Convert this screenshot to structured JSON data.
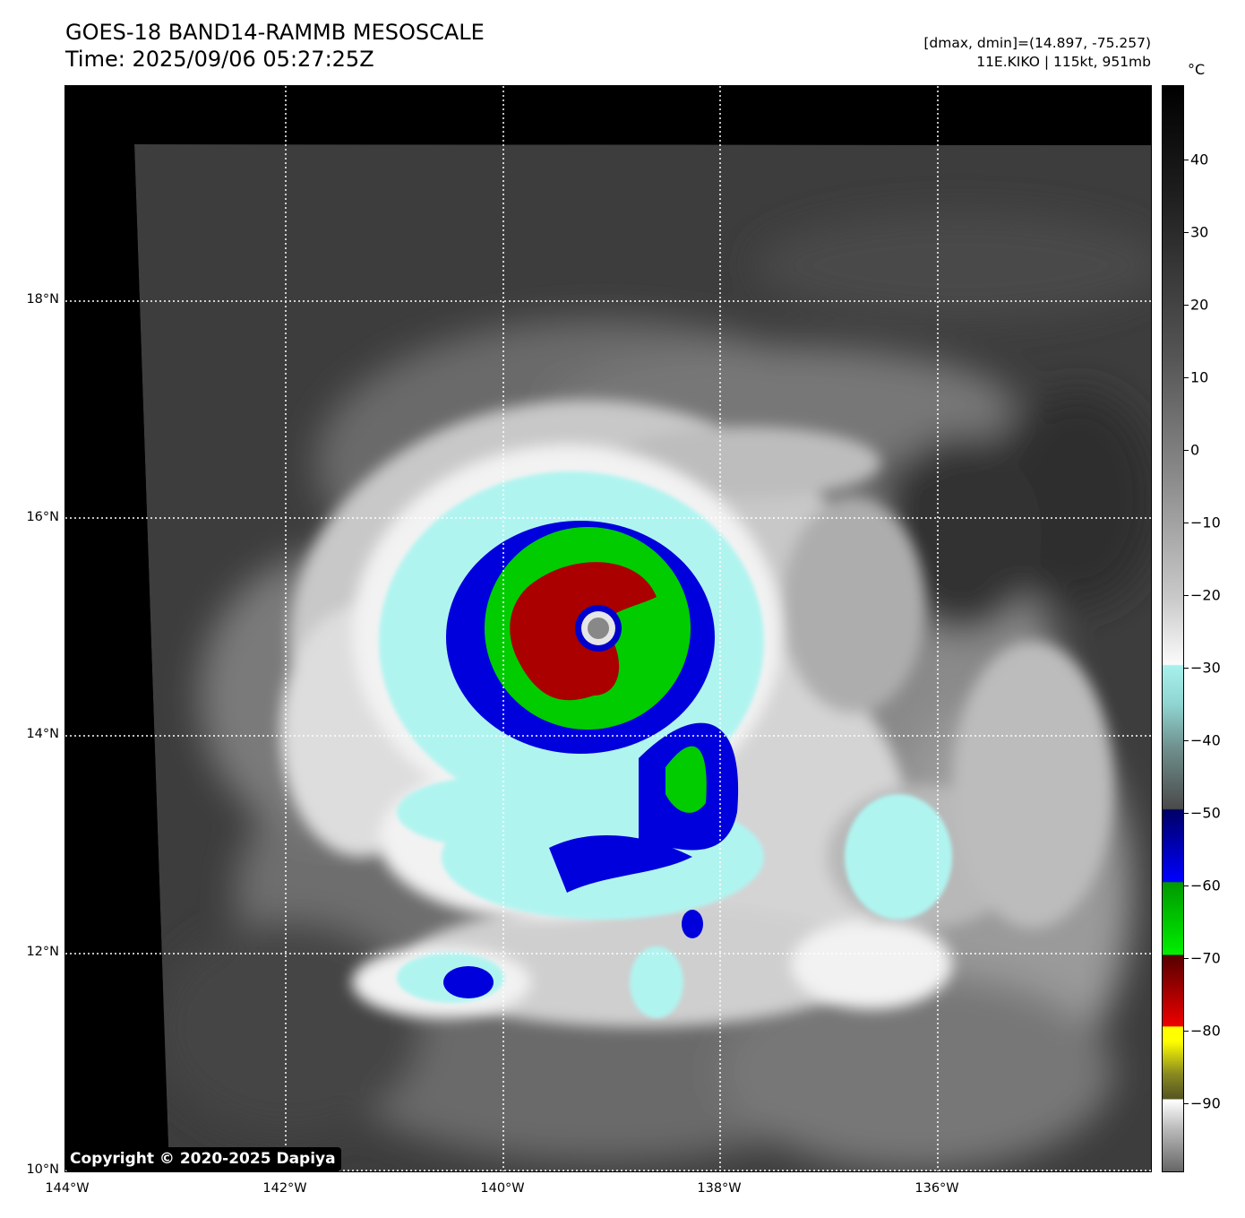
{
  "header": {
    "title_line1": "GOES-18 BAND14-RAMMB MESOSCALE",
    "title_line2": "Time: 2025/09/06 05:27:25Z",
    "info_line1": "[dmax, dmin]=(14.897, -75.257)",
    "info_line2": "11E.KIKO | 115kt, 951mb"
  },
  "map": {
    "lat_labels": [
      "18°N",
      "16°N",
      "14°N",
      "12°N",
      "10°N"
    ],
    "lon_labels": [
      "144°W",
      "142°W",
      "140°W",
      "138°W",
      "136°W"
    ],
    "copyright": "Copyright © 2020-2025 Dapiya",
    "colors": {
      "cold_green": "#00cc00",
      "cold_blue": "#0000dd",
      "cold_red": "#aa0000",
      "cyan": "#b0f4f0"
    }
  },
  "colorbar": {
    "unit": "°C",
    "ticks": [
      "40",
      "30",
      "20",
      "10",
      "0",
      "−10",
      "−20",
      "−30",
      "−40",
      "−50",
      "−60",
      "−70",
      "−80",
      "−90"
    ]
  }
}
